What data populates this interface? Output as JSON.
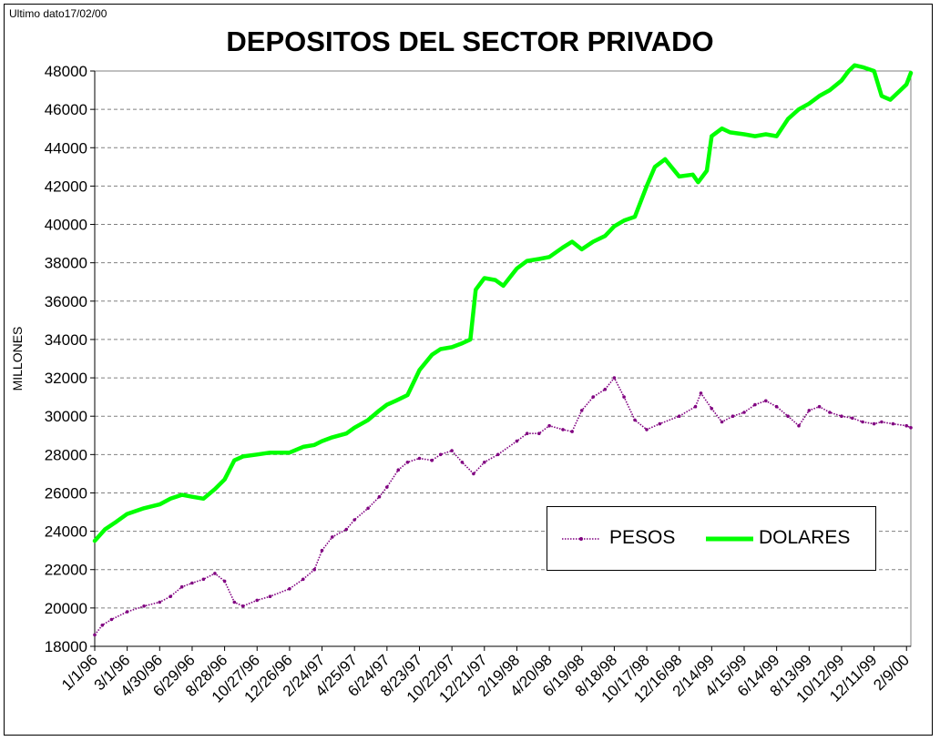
{
  "note": "Ultimo dato17/02/00",
  "chart_data": {
    "type": "line",
    "title": "DEPOSITOS DEL SECTOR PRIVADO",
    "xlabel": "",
    "ylabel": "MILLONES",
    "ylim": [
      18000,
      48000
    ],
    "yticks": [
      18000,
      20000,
      22000,
      24000,
      26000,
      28000,
      30000,
      32000,
      34000,
      36000,
      38000,
      40000,
      42000,
      44000,
      46000,
      48000
    ],
    "grid": "horizontal dashed",
    "legend_position": "bottom-right",
    "x_tick_labels": [
      "1/1/96",
      "3/1/96",
      "4/30/96",
      "6/29/96",
      "8/28/96",
      "10/27/96",
      "12/26/96",
      "2/24/97",
      "4/25/97",
      "6/24/97",
      "8/23/97",
      "10/22/97",
      "12/21/97",
      "2/19/98",
      "4/20/98",
      "6/19/98",
      "8/18/98",
      "10/17/98",
      "12/16/98",
      "2/14/99",
      "4/15/99",
      "6/14/99",
      "8/13/99",
      "10/12/99",
      "12/11/99",
      "2/9/00"
    ],
    "x_range": [
      "1/1/96",
      "2/17/00"
    ],
    "series": [
      {
        "name": "PESOS",
        "color": "#800080",
        "style": "dotted markers",
        "x": [
          "1/1/96",
          "1/15/96",
          "2/1/96",
          "3/1/96",
          "4/1/96",
          "4/30/96",
          "5/20/96",
          "6/10/96",
          "6/29/96",
          "7/20/96",
          "8/10/96",
          "8/28/96",
          "9/15/96",
          "10/1/96",
          "10/27/96",
          "11/20/96",
          "12/26/96",
          "1/20/97",
          "2/10/97",
          "2/24/97",
          "3/15/97",
          "4/10/97",
          "4/25/97",
          "5/20/97",
          "6/10/97",
          "6/24/97",
          "7/15/97",
          "8/1/97",
          "8/23/97",
          "9/15/97",
          "10/1/97",
          "10/22/97",
          "11/10/97",
          "12/1/97",
          "12/21/97",
          "1/15/98",
          "2/19/98",
          "3/10/98",
          "4/1/98",
          "4/20/98",
          "5/15/98",
          "6/1/98",
          "6/19/98",
          "7/10/98",
          "8/1/98",
          "8/18/98",
          "9/5/98",
          "9/25/98",
          "10/17/98",
          "11/10/98",
          "12/16/98",
          "1/15/99",
          "1/25/99",
          "2/14/99",
          "3/5/99",
          "3/25/99",
          "4/15/99",
          "5/5/99",
          "5/25/99",
          "6/14/99",
          "7/5/99",
          "7/25/99",
          "8/13/99",
          "9/1/99",
          "9/20/99",
          "10/12/99",
          "11/1/99",
          "11/20/99",
          "12/11/99",
          "12/25/99",
          "1/15/00",
          "2/9/00",
          "2/17/00"
        ],
        "values": [
          18600,
          19100,
          19400,
          19800,
          20100,
          20300,
          20600,
          21100,
          21300,
          21500,
          21800,
          21400,
          20300,
          20100,
          20400,
          20600,
          21000,
          21500,
          22000,
          23000,
          23700,
          24100,
          24600,
          25200,
          25800,
          26300,
          27200,
          27600,
          27800,
          27700,
          28000,
          28200,
          27600,
          27000,
          27600,
          28000,
          28700,
          29100,
          29100,
          29500,
          29300,
          29200,
          30300,
          31000,
          31400,
          32000,
          31000,
          29800,
          29300,
          29600,
          30000,
          30500,
          31200,
          30400,
          29700,
          30000,
          30200,
          30600,
          30800,
          30500,
          30000,
          29500,
          30300,
          30500,
          30200,
          30000,
          29900,
          29700,
          29600,
          29700,
          29600,
          29500,
          29400
        ]
      },
      {
        "name": "DOLARES",
        "color": "#00ff00",
        "style": "thick line",
        "x": [
          "1/1/96",
          "1/20/96",
          "2/10/96",
          "3/1/96",
          "4/1/96",
          "4/30/96",
          "5/20/96",
          "6/10/96",
          "6/29/96",
          "7/20/96",
          "8/10/96",
          "8/28/96",
          "9/15/96",
          "10/1/96",
          "10/27/96",
          "11/20/96",
          "12/26/96",
          "1/20/97",
          "2/10/97",
          "2/24/97",
          "3/15/97",
          "4/10/97",
          "4/25/97",
          "5/20/97",
          "6/10/97",
          "6/24/97",
          "7/10/97",
          "8/1/97",
          "8/23/97",
          "9/15/97",
          "10/1/97",
          "10/22/97",
          "11/10/97",
          "11/25/97",
          "12/5/97",
          "12/21/97",
          "1/10/98",
          "1/25/98",
          "2/19/98",
          "3/10/98",
          "4/1/98",
          "4/20/98",
          "5/15/98",
          "6/1/98",
          "6/19/98",
          "7/10/98",
          "8/1/98",
          "8/18/98",
          "9/5/98",
          "9/25/98",
          "10/17/98",
          "11/1/98",
          "11/20/98",
          "12/16/98",
          "1/10/99",
          "1/20/99",
          "2/5/99",
          "2/14/99",
          "3/5/99",
          "3/20/99",
          "4/15/99",
          "5/5/99",
          "5/25/99",
          "6/14/99",
          "7/5/99",
          "7/25/99",
          "8/13/99",
          "9/1/99",
          "9/20/99",
          "10/12/99",
          "10/25/99",
          "11/5/99",
          "11/20/99",
          "12/11/99",
          "12/25/99",
          "1/10/00",
          "1/25/00",
          "2/9/00",
          "2/17/00"
        ],
        "values": [
          23500,
          24100,
          24500,
          24900,
          25200,
          25400,
          25700,
          25900,
          25800,
          25700,
          26200,
          26700,
          27700,
          27900,
          28000,
          28100,
          28100,
          28400,
          28500,
          28700,
          28900,
          29100,
          29400,
          29800,
          30300,
          30600,
          30800,
          31100,
          32400,
          33200,
          33500,
          33600,
          33800,
          34000,
          36600,
          37200,
          37100,
          36800,
          37700,
          38100,
          38200,
          38300,
          38800,
          39100,
          38700,
          39100,
          39400,
          39900,
          40200,
          40400,
          42000,
          43000,
          43400,
          42500,
          42600,
          42200,
          42800,
          44600,
          45000,
          44800,
          44700,
          44600,
          44700,
          44600,
          45500,
          46000,
          46300,
          46700,
          47000,
          47500,
          48000,
          48300,
          48200,
          48000,
          46700,
          46500,
          46900,
          47300,
          47900
        ]
      }
    ]
  }
}
